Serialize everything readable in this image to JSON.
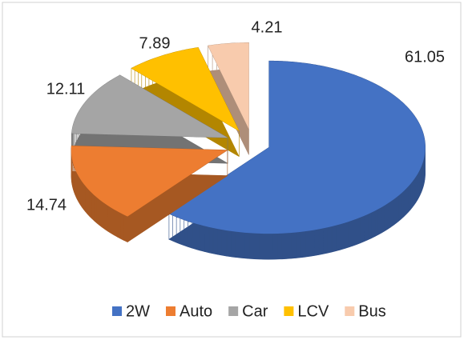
{
  "chart_data": {
    "type": "pie",
    "categories": [
      "2W",
      "Auto",
      "Car",
      "LCV",
      "Bus"
    ],
    "values": [
      61.05,
      14.74,
      12.11,
      7.89,
      4.21
    ],
    "colors": [
      "#4472c4",
      "#ed7d31",
      "#a5a5a5",
      "#ffc000",
      "#f8cbad"
    ],
    "legend": "bottom"
  }
}
